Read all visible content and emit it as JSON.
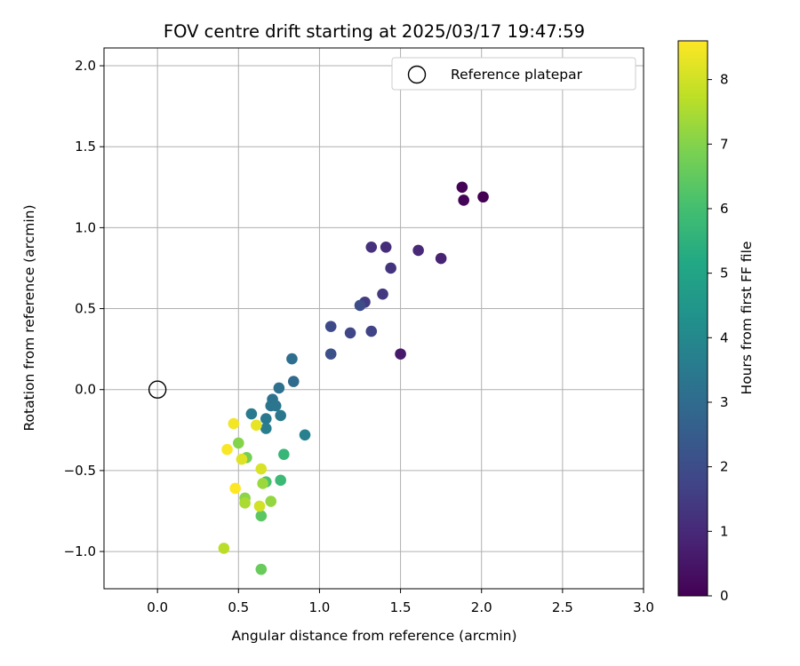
{
  "chart_data": {
    "type": "scatter",
    "title": "FOV centre drift starting at 2025/03/17 19:47:59",
    "xlabel": "Angular distance from reference (arcmin)",
    "ylabel": "Rotation from reference (arcmin)",
    "xlim": [
      -0.33,
      3.0
    ],
    "ylim": [
      -1.23,
      2.11
    ],
    "x_ticks": [
      0.0,
      0.5,
      1.0,
      1.5,
      2.0,
      2.5,
      3.0
    ],
    "x_tick_labels": [
      "0.0",
      "0.5",
      "1.0",
      "1.5",
      "2.0",
      "2.5",
      "3.0"
    ],
    "y_ticks": [
      -1.0,
      -0.5,
      0.0,
      0.5,
      1.0,
      1.5,
      2.0
    ],
    "y_tick_labels": [
      "−1.0",
      "−0.5",
      "0.0",
      "0.5",
      "1.0",
      "1.5",
      "2.0"
    ],
    "grid": true,
    "legend": {
      "position": "top-right",
      "entries": [
        "Reference platepar"
      ]
    },
    "reference_point": {
      "x": 0.0,
      "y": 0.0,
      "label": "Reference platepar"
    },
    "colorbar": {
      "label": "Hours from first FF file",
      "colormap": "viridis",
      "range": [
        0,
        8.6
      ],
      "ticks": [
        0,
        1,
        2,
        3,
        4,
        5,
        6,
        7,
        8
      ],
      "tick_labels": [
        "0",
        "1",
        "2",
        "3",
        "4",
        "5",
        "6",
        "7",
        "8"
      ]
    },
    "points": [
      {
        "x": 2.01,
        "y": 1.19,
        "c": 0.0
      },
      {
        "x": 1.88,
        "y": 1.25,
        "c": 0.05
      },
      {
        "x": 1.89,
        "y": 1.17,
        "c": 0.1
      },
      {
        "x": 1.5,
        "y": 0.22,
        "c": 0.6
      },
      {
        "x": 1.75,
        "y": 0.81,
        "c": 0.8
      },
      {
        "x": 1.61,
        "y": 0.86,
        "c": 1.0
      },
      {
        "x": 1.41,
        "y": 0.88,
        "c": 1.1
      },
      {
        "x": 1.32,
        "y": 0.88,
        "c": 1.2
      },
      {
        "x": 1.44,
        "y": 0.75,
        "c": 1.3
      },
      {
        "x": 1.39,
        "y": 0.59,
        "c": 1.4
      },
      {
        "x": 1.28,
        "y": 0.54,
        "c": 1.5
      },
      {
        "x": 1.32,
        "y": 0.36,
        "c": 1.7
      },
      {
        "x": 1.19,
        "y": 0.35,
        "c": 1.8
      },
      {
        "x": 1.07,
        "y": 0.39,
        "c": 1.9
      },
      {
        "x": 1.25,
        "y": 0.52,
        "c": 2.0
      },
      {
        "x": 1.07,
        "y": 0.22,
        "c": 2.1
      },
      {
        "x": 0.84,
        "y": 0.05,
        "c": 3.0
      },
      {
        "x": 0.83,
        "y": 0.19,
        "c": 3.1
      },
      {
        "x": 0.75,
        "y": 0.01,
        "c": 3.2
      },
      {
        "x": 0.71,
        "y": -0.06,
        "c": 3.25
      },
      {
        "x": 0.7,
        "y": -0.1,
        "c": 3.3
      },
      {
        "x": 0.73,
        "y": -0.1,
        "c": 3.35
      },
      {
        "x": 0.76,
        "y": -0.16,
        "c": 3.4
      },
      {
        "x": 0.67,
        "y": -0.18,
        "c": 3.45
      },
      {
        "x": 0.58,
        "y": -0.15,
        "c": 3.5
      },
      {
        "x": 0.67,
        "y": -0.24,
        "c": 3.6
      },
      {
        "x": 0.91,
        "y": -0.28,
        "c": 3.7
      },
      {
        "x": 0.78,
        "y": -0.4,
        "c": 5.7
      },
      {
        "x": 0.76,
        "y": -0.56,
        "c": 5.8
      },
      {
        "x": 0.67,
        "y": -0.57,
        "c": 6.1
      },
      {
        "x": 0.64,
        "y": -0.78,
        "c": 6.4
      },
      {
        "x": 0.64,
        "y": -1.11,
        "c": 6.6
      },
      {
        "x": 0.55,
        "y": -0.42,
        "c": 6.8
      },
      {
        "x": 0.5,
        "y": -0.33,
        "c": 7.0
      },
      {
        "x": 0.54,
        "y": -0.67,
        "c": 7.1
      },
      {
        "x": 0.7,
        "y": -0.69,
        "c": 7.2
      },
      {
        "x": 0.65,
        "y": -0.58,
        "c": 7.3
      },
      {
        "x": 0.54,
        "y": -0.7,
        "c": 7.5
      },
      {
        "x": 0.41,
        "y": -0.98,
        "c": 7.7
      },
      {
        "x": 0.63,
        "y": -0.72,
        "c": 8.0
      },
      {
        "x": 0.64,
        "y": -0.49,
        "c": 8.1
      },
      {
        "x": 0.52,
        "y": -0.43,
        "c": 8.2
      },
      {
        "x": 0.61,
        "y": -0.22,
        "c": 8.3
      },
      {
        "x": 0.47,
        "y": -0.21,
        "c": 8.45
      },
      {
        "x": 0.43,
        "y": -0.37,
        "c": 8.55
      },
      {
        "x": 0.48,
        "y": -0.61,
        "c": 8.6
      }
    ]
  }
}
